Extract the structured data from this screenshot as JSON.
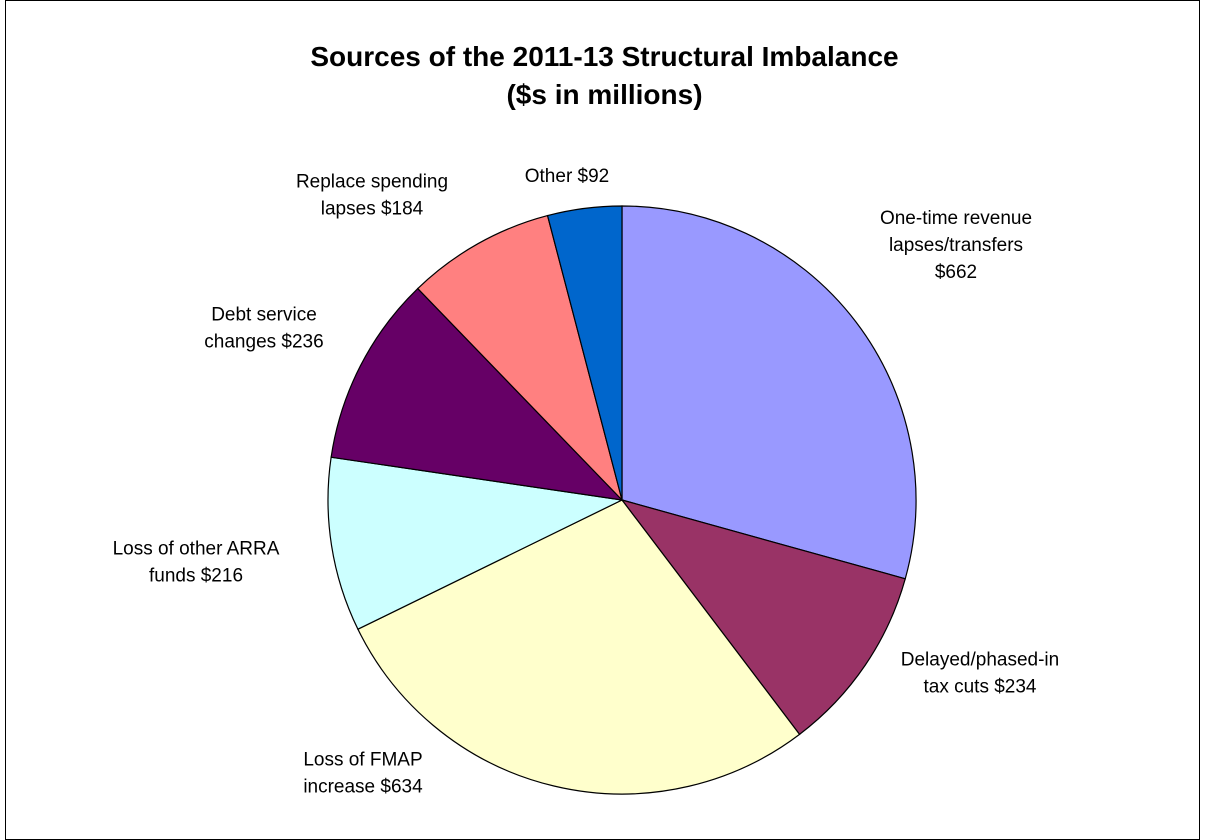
{
  "chart_data": {
    "type": "pie",
    "title": "Sources of the 2011-13 Structural Imbalance",
    "subtitle": "($s in millions)",
    "start_angle_deg": 0,
    "direction": "clockwise",
    "slices": [
      {
        "lines": [
          "One-time revenue",
          "lapses/transfers",
          "$662"
        ],
        "value": 662,
        "color": "#9999ff"
      },
      {
        "lines": [
          "Delayed/phased-in",
          "tax cuts  $234"
        ],
        "value": 234,
        "color": "#993366"
      },
      {
        "lines": [
          "Loss of FMAP",
          "increase  $634"
        ],
        "value": 634,
        "color": "#ffffcc"
      },
      {
        "lines": [
          "Loss of other ARRA",
          "funds  $216"
        ],
        "value": 216,
        "color": "#ccffff"
      },
      {
        "lines": [
          "Debt service",
          "changes  $236"
        ],
        "value": 236,
        "color": "#660066"
      },
      {
        "lines": [
          "Replace spending",
          "lapses  $184"
        ],
        "value": 184,
        "color": "#ff8080"
      },
      {
        "lines": [
          "Other  $92"
        ],
        "value": 92,
        "color": "#0066cc"
      }
    ]
  }
}
